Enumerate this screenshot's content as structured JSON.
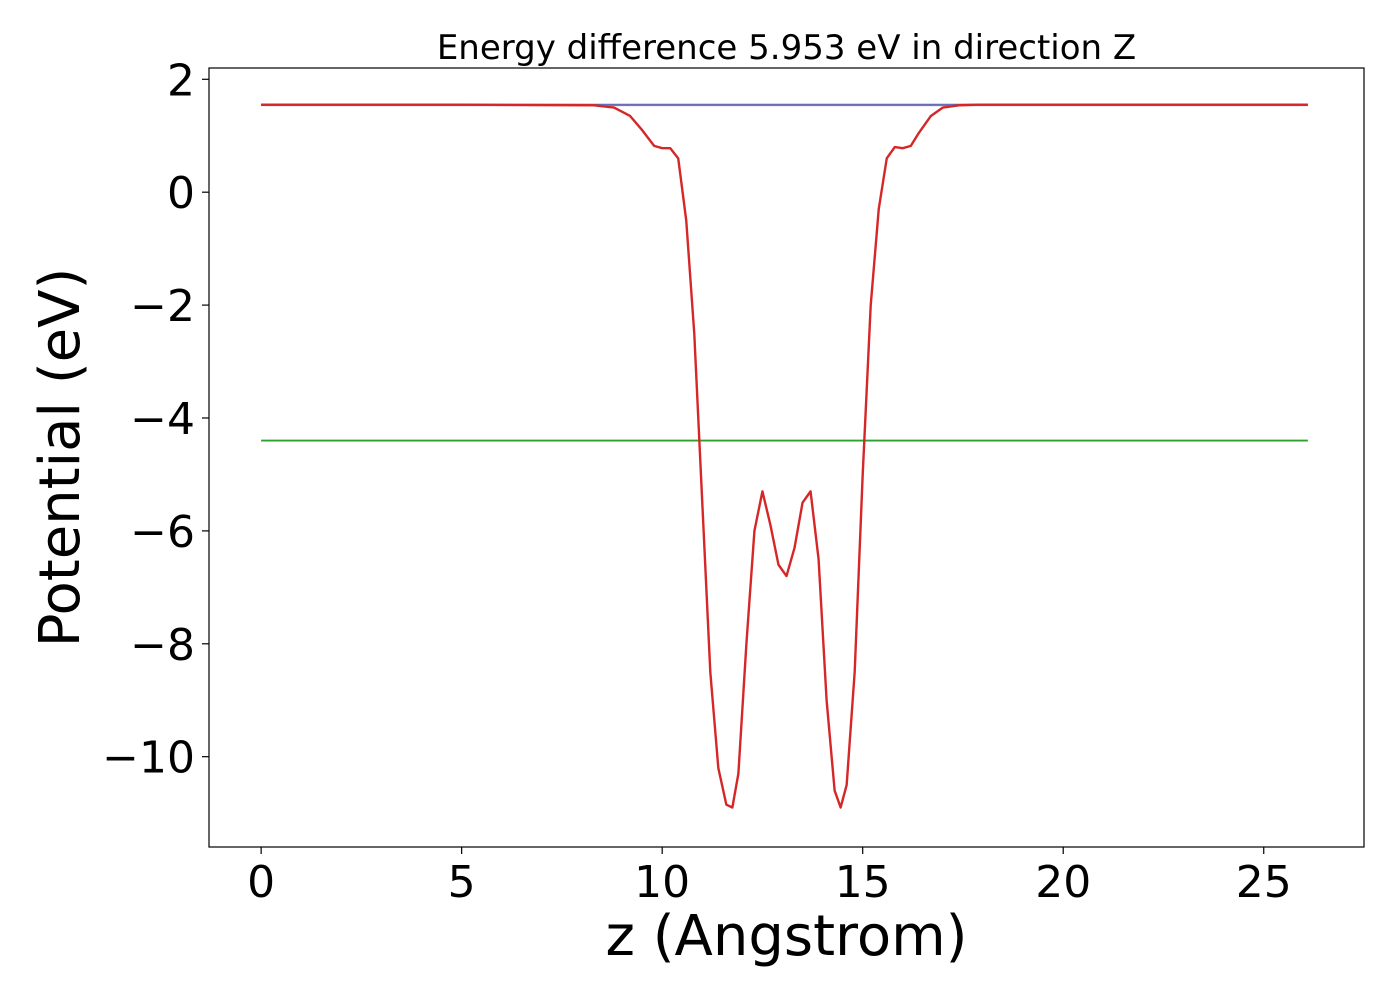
{
  "chart_data": {
    "type": "line",
    "title": "Energy difference 5.953 eV in direction Z",
    "xlabel": "z (Angstrom)",
    "ylabel": "Potential (eV)",
    "xlim": [
      -1.3,
      27.5
    ],
    "ylim": [
      -11.6,
      2.2
    ],
    "xticks": [
      0,
      5,
      10,
      15,
      20,
      25
    ],
    "yticks": [
      2,
      0,
      -2,
      -4,
      -6,
      -8,
      -10
    ],
    "xtick_labels": [
      "0",
      "5",
      "10",
      "15",
      "20",
      "25"
    ],
    "ytick_labels": [
      "2",
      "0",
      "−2",
      "−4",
      "−6",
      "−8",
      "−10"
    ],
    "grid": false,
    "legend": "none",
    "series": [
      {
        "color": "#1f77b4",
        "x": [
          0,
          26.1
        ],
        "y": [
          1.55,
          1.55
        ]
      },
      {
        "color": "#2ca02c",
        "x": [
          0,
          26.1
        ],
        "y": [
          -4.4,
          -4.4
        ]
      },
      {
        "color": "#9467bd",
        "x": [
          0,
          8.5,
          17.6,
          26.1
        ],
        "y": [
          1.54,
          1.54,
          1.54,
          1.54
        ]
      },
      {
        "color": "#d62728",
        "x": [
          0,
          5,
          8.3,
          8.8,
          9.2,
          9.5,
          9.8,
          10.0,
          10.2,
          10.4,
          10.6,
          10.8,
          11.0,
          11.2,
          11.4,
          11.6,
          11.75,
          11.9,
          12.1,
          12.3,
          12.5,
          12.7,
          12.9,
          13.1,
          13.3,
          13.5,
          13.7,
          13.9,
          14.1,
          14.3,
          14.45,
          14.6,
          14.8,
          15.0,
          15.2,
          15.4,
          15.6,
          15.8,
          16.0,
          16.2,
          16.4,
          16.7,
          17.0,
          17.4,
          17.9,
          21,
          26.1
        ],
        "y": [
          1.55,
          1.55,
          1.54,
          1.5,
          1.35,
          1.1,
          0.82,
          0.78,
          0.78,
          0.6,
          -0.5,
          -2.5,
          -5.5,
          -8.5,
          -10.2,
          -10.85,
          -10.9,
          -10.3,
          -8.0,
          -6.0,
          -5.3,
          -5.9,
          -6.6,
          -6.8,
          -6.3,
          -5.5,
          -5.3,
          -6.5,
          -9.0,
          -10.6,
          -10.9,
          -10.5,
          -8.5,
          -5.0,
          -2.0,
          -0.3,
          0.6,
          0.8,
          0.78,
          0.82,
          1.05,
          1.35,
          1.5,
          1.54,
          1.55,
          1.55,
          1.55
        ]
      }
    ]
  }
}
